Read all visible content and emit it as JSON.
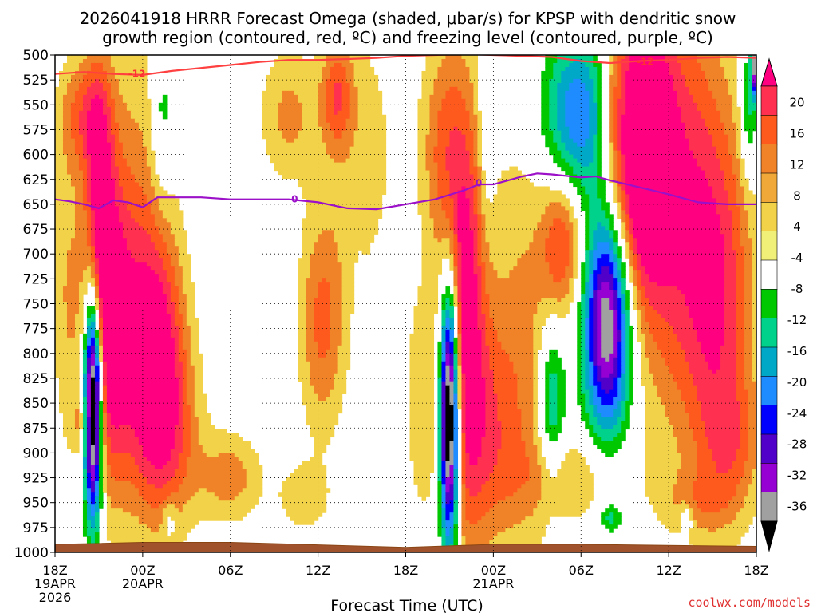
{
  "chart_data": {
    "type": "heatmap",
    "title_line1": "2026041918 HRRR Forecast Omega (shaded, μbar/s) for KPSP with dendritic snow",
    "title_line2": "growth region (contoured, red, ºC) and freezing level (contoured, purple, ºC)",
    "xlabel": "Forecast Time (UTC)",
    "credit": "coolwx.com/models",
    "x_hours_range": [
      0,
      48
    ],
    "y_pressure_range": [
      1000,
      500
    ],
    "y_ticks": [
      500,
      525,
      550,
      575,
      600,
      625,
      650,
      675,
      700,
      725,
      750,
      775,
      800,
      825,
      850,
      875,
      900,
      925,
      950,
      975,
      1000
    ],
    "x_ticks": [
      {
        "hour": 0,
        "label": "18Z",
        "sub": [
          "19APR",
          "2026"
        ]
      },
      {
        "hour": 6,
        "label": "00Z",
        "sub": [
          "20APR"
        ]
      },
      {
        "hour": 12,
        "label": "06Z",
        "sub": []
      },
      {
        "hour": 18,
        "label": "12Z",
        "sub": []
      },
      {
        "hour": 24,
        "label": "18Z",
        "sub": []
      },
      {
        "hour": 30,
        "label": "00Z",
        "sub": [
          "21APR"
        ]
      },
      {
        "hour": 36,
        "label": "06Z",
        "sub": []
      },
      {
        "hour": 42,
        "label": "12Z",
        "sub": []
      },
      {
        "hour": 48,
        "label": "18Z",
        "sub": []
      }
    ],
    "colorbar": {
      "labels": [
        20,
        16,
        12,
        8,
        4,
        -4,
        -8,
        -12,
        -16,
        -20,
        -24,
        -28,
        -32,
        -36
      ],
      "colors": [
        "#ff0080",
        "#ff3050",
        "#ff5a1e",
        "#f08228",
        "#f0a838",
        "#f2d248",
        "#f0f078",
        "#ffffff",
        "#00c800",
        "#00d28c",
        "#00a8c8",
        "#1e8cff",
        "#0000ff",
        "#5000c8",
        "#9600d2",
        "#a0a0a0",
        "#000000"
      ]
    },
    "omega_blobs": [
      {
        "h": 0.9,
        "p": 740,
        "rh": 1.2,
        "rp": 150,
        "v": 8
      },
      {
        "h": 1.9,
        "p": 560,
        "rh": 1.7,
        "rp": 60,
        "v": 12
      },
      {
        "h": 2.0,
        "p": 870,
        "rh": 0.9,
        "rp": 30,
        "v": 8
      },
      {
        "h": 3.0,
        "p": 640,
        "rh": 1.0,
        "rp": 140,
        "v": 16
      },
      {
        "h": 3.7,
        "p": 780,
        "rh": 1.4,
        "rp": 150,
        "v": 22
      },
      {
        "h": 5.5,
        "p": 705,
        "rh": 2.1,
        "rp": 230,
        "v": 10
      },
      {
        "h": 7.0,
        "p": 810,
        "rh": 2.0,
        "rp": 130,
        "v": 22
      },
      {
        "h": 8.0,
        "p": 890,
        "rh": 2.3,
        "rp": 90,
        "v": 8
      },
      {
        "h": 12.0,
        "p": 925,
        "rh": 2.2,
        "rp": 45,
        "v": 10
      },
      {
        "h": 17.0,
        "p": 945,
        "rh": 1.8,
        "rp": 35,
        "v": 7
      },
      {
        "h": 16.0,
        "p": 560,
        "rh": 2.0,
        "rp": 70,
        "v": 9
      },
      {
        "h": 18.3,
        "p": 770,
        "rh": 1.6,
        "rp": 110,
        "v": 13
      },
      {
        "h": 19.3,
        "p": 540,
        "rh": 1.1,
        "rp": 55,
        "v": 13
      },
      {
        "h": 21.0,
        "p": 600,
        "rh": 2.6,
        "rp": 150,
        "v": 6
      },
      {
        "h": 25.1,
        "p": 850,
        "rh": 1.2,
        "rp": 120,
        "v": 7
      },
      {
        "h": 26.4,
        "p": 590,
        "rh": 1.5,
        "rp": 110,
        "v": 10
      },
      {
        "h": 28.0,
        "p": 760,
        "rh": 1.5,
        "rp": 220,
        "v": 24
      },
      {
        "h": 29.8,
        "p": 880,
        "rh": 1.9,
        "rp": 110,
        "v": 10
      },
      {
        "h": 32.0,
        "p": 800,
        "rh": 2.4,
        "rp": 230,
        "v": 9
      },
      {
        "h": 34.7,
        "p": 690,
        "rh": 1.4,
        "rp": 70,
        "v": 15
      },
      {
        "h": 35.5,
        "p": 925,
        "rh": 4.0,
        "rp": 45,
        "v": 8
      },
      {
        "h": 38.0,
        "p": 560,
        "rh": 0.8,
        "rp": 80,
        "v": 6
      },
      {
        "h": 40.0,
        "p": 590,
        "rh": 2.0,
        "rp": 150,
        "v": 28
      },
      {
        "h": 42.5,
        "p": 640,
        "rh": 3.0,
        "rp": 230,
        "v": 16
      },
      {
        "h": 45.5,
        "p": 750,
        "rh": 2.5,
        "rp": 200,
        "v": 17
      },
      {
        "h": 46.5,
        "p": 890,
        "rh": 2.0,
        "rp": 60,
        "v": 8
      },
      {
        "h": 44.0,
        "p": 950,
        "rh": 2.5,
        "rp": 30,
        "v": 6
      },
      {
        "h": 2.6,
        "p": 850,
        "rh": 0.6,
        "rp": 110,
        "v": -55
      },
      {
        "h": 7.3,
        "p": 565,
        "rh": 0.7,
        "rp": 80,
        "v": -8
      },
      {
        "h": 7.8,
        "p": 965,
        "rh": 0.45,
        "rp": 20,
        "v": -6
      },
      {
        "h": 16.3,
        "p": 655,
        "rh": 0.35,
        "rp": 20,
        "v": -6
      },
      {
        "h": 15.0,
        "p": 780,
        "rh": 0.3,
        "rp": 45,
        "v": -5
      },
      {
        "h": 20.8,
        "p": 785,
        "rh": 0.3,
        "rp": 60,
        "v": -6
      },
      {
        "h": 27.0,
        "p": 860,
        "rh": 0.65,
        "rp": 130,
        "v": -55
      },
      {
        "h": 29.5,
        "p": 570,
        "rh": 0.6,
        "rp": 120,
        "v": -6
      },
      {
        "h": 34.0,
        "p": 850,
        "rh": 0.9,
        "rp": 80,
        "v": -15
      },
      {
        "h": 35.8,
        "p": 560,
        "rh": 2.4,
        "rp": 80,
        "v": -20
      },
      {
        "h": 37.8,
        "p": 770,
        "rh": 1.6,
        "rp": 110,
        "v": -38
      },
      {
        "h": 38.0,
        "p": 965,
        "rh": 0.8,
        "rp": 15,
        "v": -10
      },
      {
        "h": 43.2,
        "p": 965,
        "rh": 0.45,
        "rp": 15,
        "v": -8
      },
      {
        "h": 47.5,
        "p": 555,
        "rh": 0.6,
        "rp": 70,
        "v": -12
      },
      {
        "h": 48.0,
        "p": 510,
        "rh": 0.3,
        "rp": 30,
        "v": -40
      }
    ],
    "dgz_minus12_line": [
      [
        0,
        519
      ],
      [
        2,
        517
      ],
      [
        4,
        519
      ],
      [
        6,
        520
      ],
      [
        8,
        516
      ],
      [
        10,
        513
      ],
      [
        12,
        510
      ],
      [
        14,
        507
      ],
      [
        16,
        505
      ],
      [
        18,
        505
      ],
      [
        20,
        504
      ],
      [
        22,
        503
      ],
      [
        24,
        501
      ],
      [
        26,
        500
      ],
      [
        28,
        499
      ],
      [
        30,
        500
      ],
      [
        32,
        501
      ],
      [
        34,
        502
      ],
      [
        36,
        506
      ],
      [
        38,
        508
      ],
      [
        40,
        506
      ],
      [
        42,
        505
      ],
      [
        44,
        503
      ],
      [
        46,
        502
      ],
      [
        48,
        503
      ]
    ],
    "dgz_minus12_labels": [
      {
        "h": 5.6,
        "p": 519,
        "text": "-12"
      },
      {
        "h": 40.4,
        "p": 507,
        "text": "-12"
      }
    ],
    "freezing_level_line": [
      [
        0,
        645
      ],
      [
        1,
        647
      ],
      [
        2,
        650
      ],
      [
        3,
        654
      ],
      [
        4,
        646
      ],
      [
        5,
        648
      ],
      [
        6,
        653
      ],
      [
        7,
        643
      ],
      [
        8,
        643
      ],
      [
        10,
        643
      ],
      [
        12,
        645
      ],
      [
        14,
        645
      ],
      [
        16,
        645
      ],
      [
        18,
        648
      ],
      [
        20,
        654
      ],
      [
        22,
        655
      ],
      [
        24,
        650
      ],
      [
        26,
        645
      ],
      [
        28,
        636
      ],
      [
        29,
        630
      ],
      [
        30,
        630
      ],
      [
        32,
        622
      ],
      [
        33,
        619
      ],
      [
        34,
        620
      ],
      [
        36,
        623
      ],
      [
        37,
        622
      ],
      [
        38,
        626
      ],
      [
        40,
        633
      ],
      [
        42,
        640
      ],
      [
        44,
        648
      ],
      [
        46,
        650
      ],
      [
        48,
        650
      ]
    ],
    "freezing_level_labels": [
      {
        "h": 16.4,
        "p": 645,
        "text": "0"
      },
      {
        "h": 29.0,
        "p": 629,
        "text": "0"
      }
    ]
  }
}
